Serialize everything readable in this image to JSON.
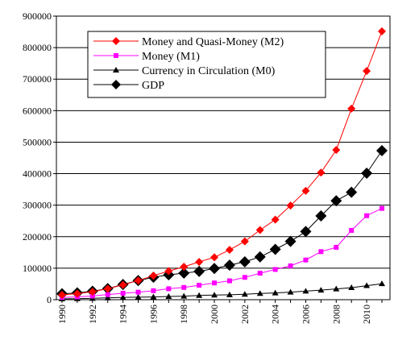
{
  "chart_data": {
    "type": "line",
    "title": "",
    "xlabel": "",
    "ylabel": "",
    "x": [
      1990,
      1991,
      1992,
      1993,
      1994,
      1995,
      1996,
      1997,
      1998,
      1999,
      2000,
      2001,
      2002,
      2003,
      2004,
      2005,
      2006,
      2007,
      2008,
      2009,
      2010,
      2011
    ],
    "ylim": [
      0,
      900000
    ],
    "yticks": [
      "0",
      "100000",
      "200000",
      "300000",
      "400000",
      "500000",
      "600000",
      "700000",
      "800000",
      "900000"
    ],
    "xticks": [
      "1990",
      "1992",
      "1994",
      "1996",
      "1998",
      "2000",
      "2002",
      "2004",
      "2006",
      "2008",
      "2010"
    ],
    "grid": "horizontal",
    "legend_position": "top-left",
    "series": [
      {
        "name": "Money and Quasi-Money (M2)",
        "color": "#ff0000",
        "marker": "diamond",
        "values": [
          15300,
          19300,
          25400,
          34900,
          46900,
          60800,
          76100,
          90800,
          104500,
          119900,
          134600,
          158300,
          185000,
          221200,
          254100,
          298800,
          345600,
          403400,
          475200,
          606200,
          725900,
          851600
        ]
      },
      {
        "name": "Money (M1)",
        "color": "#ff00ff",
        "marker": "square",
        "values": [
          7000,
          9000,
          11700,
          16300,
          20500,
          23900,
          28500,
          34800,
          38900,
          45800,
          53100,
          59900,
          70900,
          84100,
          95900,
          107300,
          126000,
          152600,
          166200,
          220000,
          266600,
          289800
        ]
      },
      {
        "name": "Currency in Circulation (M0)",
        "color": "#000000",
        "marker": "triangle",
        "values": [
          2600,
          3200,
          4300,
          5900,
          7300,
          7900,
          8800,
          10200,
          11200,
          13500,
          14700,
          15700,
          17300,
          19700,
          21500,
          24000,
          27100,
          30300,
          34200,
          38200,
          44600,
          50700
        ]
      },
      {
        "name": "GDP",
        "color": "#000000",
        "marker": "diamond-large",
        "values": [
          18700,
          21800,
          26900,
          35300,
          48200,
          60800,
          71200,
          78900,
          84400,
          89700,
          99200,
          109700,
          120300,
          135800,
          159900,
          184900,
          216300,
          265800,
          314000,
          340900,
          401500,
          473100
        ]
      }
    ]
  }
}
